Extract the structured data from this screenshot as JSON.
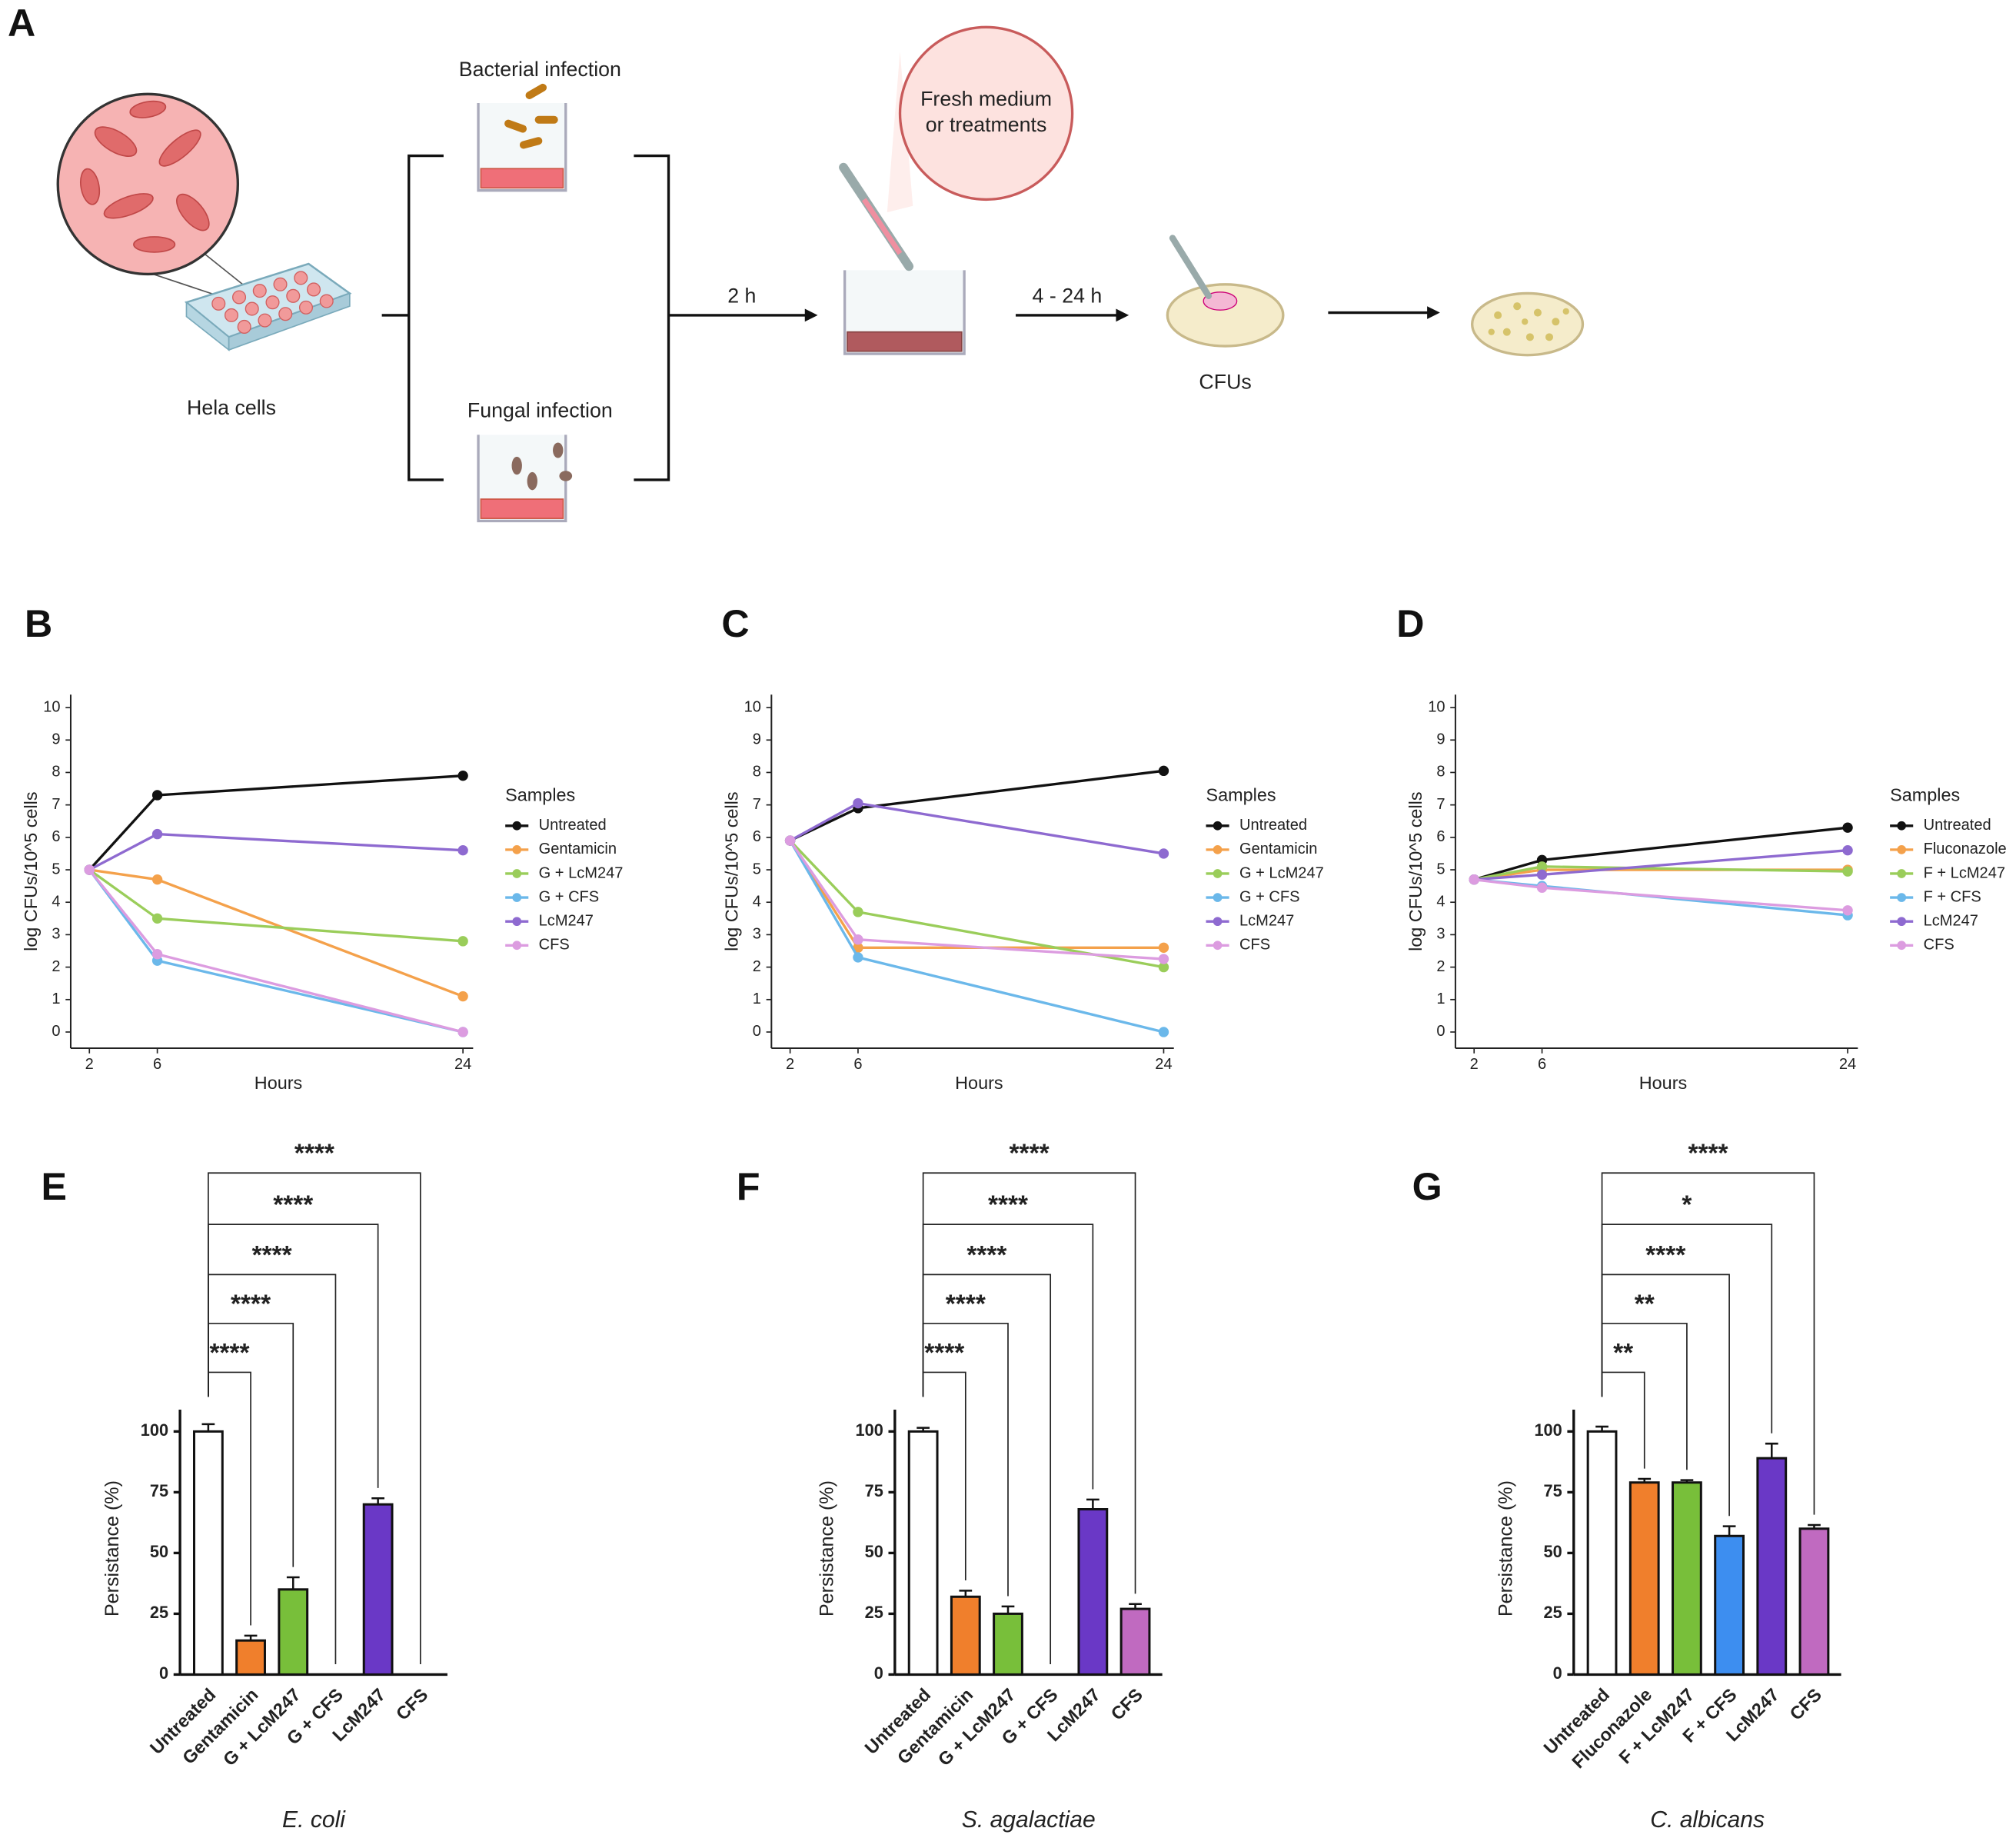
{
  "diagram": {
    "panel": "A",
    "hela": "Hela cells",
    "bacterial": "Bacterial infection",
    "fungal": "Fungal infection",
    "bubble": [
      "Fresh medium",
      "or treatments"
    ],
    "step1": "2 h",
    "step2": "4 - 24 h",
    "cfus": "CFUs"
  },
  "chart_data": [
    {
      "type": "line",
      "panel": "B",
      "xlabel": "Hours",
      "ylabel": "log CFUs/10^5 cells",
      "legend_title": "Samples",
      "x": [
        2,
        6,
        24
      ],
      "xlim": [
        0.9,
        24.6
      ],
      "xticks": [
        2,
        6,
        24
      ],
      "ylim": [
        -0.5,
        10.4
      ],
      "yticks": [
        0,
        1,
        2,
        3,
        4,
        5,
        6,
        7,
        8,
        9,
        10
      ],
      "series": [
        {
          "name": "Untreated",
          "color": "#111111",
          "values": [
            5,
            7.3,
            7.9
          ]
        },
        {
          "name": "Gentamicin",
          "color": "#f4a14b",
          "values": [
            5,
            4.7,
            1.1
          ]
        },
        {
          "name": "G + LcM247",
          "color": "#9acd5a",
          "values": [
            5,
            3.5,
            2.8
          ]
        },
        {
          "name": "G + CFS",
          "color": "#6bb8ea",
          "values": [
            5,
            2.2,
            0
          ]
        },
        {
          "name": "LcM247",
          "color": "#8e6ad0",
          "values": [
            5,
            6.1,
            5.6
          ]
        },
        {
          "name": "CFS",
          "color": "#dc9ce0",
          "values": [
            5,
            2.4,
            0
          ]
        }
      ]
    },
    {
      "type": "line",
      "panel": "C",
      "xlabel": "Hours",
      "ylabel": "log CFUs/10^5 cells",
      "legend_title": "Samples",
      "x": [
        2,
        6,
        24
      ],
      "xlim": [
        0.9,
        24.6
      ],
      "xticks": [
        2,
        6,
        24
      ],
      "ylim": [
        -0.5,
        10.4
      ],
      "yticks": [
        0,
        1,
        2,
        3,
        4,
        5,
        6,
        7,
        8,
        9,
        10
      ],
      "series": [
        {
          "name": "Untreated",
          "color": "#111111",
          "values": [
            5.9,
            6.9,
            8.05
          ]
        },
        {
          "name": "Gentamicin",
          "color": "#f4a14b",
          "values": [
            5.9,
            2.6,
            2.6
          ]
        },
        {
          "name": "G + LcM247",
          "color": "#9acd5a",
          "values": [
            5.9,
            3.7,
            2.0
          ]
        },
        {
          "name": "G + CFS",
          "color": "#6bb8ea",
          "values": [
            5.9,
            2.3,
            0
          ]
        },
        {
          "name": "LcM247",
          "color": "#8e6ad0",
          "values": [
            5.9,
            7.05,
            5.5
          ]
        },
        {
          "name": "CFS",
          "color": "#dc9ce0",
          "values": [
            5.9,
            2.85,
            2.25
          ]
        }
      ]
    },
    {
      "type": "line",
      "panel": "D",
      "xlabel": "Hours",
      "ylabel": "log CFUs/10^5 cells",
      "legend_title": "Samples",
      "x": [
        2,
        6,
        24
      ],
      "xlim": [
        0.9,
        24.6
      ],
      "xticks": [
        2,
        6,
        24
      ],
      "ylim": [
        -0.5,
        10.4
      ],
      "yticks": [
        0,
        1,
        2,
        3,
        4,
        5,
        6,
        7,
        8,
        9,
        10
      ],
      "series": [
        {
          "name": "Untreated",
          "color": "#111111",
          "values": [
            4.7,
            5.3,
            6.3
          ]
        },
        {
          "name": "Fluconazole",
          "color": "#f4a14b",
          "values": [
            4.7,
            5.0,
            5.0
          ]
        },
        {
          "name": "F + LcM247",
          "color": "#9acd5a",
          "values": [
            4.7,
            5.1,
            4.95
          ]
        },
        {
          "name": "F + CFS",
          "color": "#6bb8ea",
          "values": [
            4.7,
            4.5,
            3.6
          ]
        },
        {
          "name": "LcM247",
          "color": "#8e6ad0",
          "values": [
            4.7,
            4.85,
            5.6
          ]
        },
        {
          "name": "CFS",
          "color": "#dc9ce0",
          "values": [
            4.7,
            4.45,
            3.75
          ]
        }
      ]
    },
    {
      "type": "bar",
      "panel": "E",
      "subtitle": "E. coli",
      "ylabel": "Persistance (%)",
      "categories": [
        "Untreated",
        "Gentamicin",
        "G + LcM247",
        "G + CFS",
        "LcM247",
        "CFS"
      ],
      "values": [
        100,
        14,
        35,
        0,
        70,
        0
      ],
      "errors": [
        3,
        2,
        5,
        0,
        2.5,
        0
      ],
      "colors": [
        "#ffffff",
        "#f07f2c",
        "#78bf3a",
        "#3d8ef0",
        "#6a38c6",
        "#c06ac0"
      ],
      "ylim": [
        0,
        109
      ],
      "yticks": [
        0,
        25,
        50,
        75,
        100
      ],
      "significance": [
        "****",
        "****",
        "****",
        "****",
        "****"
      ]
    },
    {
      "type": "bar",
      "panel": "F",
      "subtitle": "S. agalactiae",
      "ylabel": "Persistance (%)",
      "categories": [
        "Untreated",
        "Gentamicin",
        "G + LcM247",
        "G + CFS",
        "LcM247",
        "CFS"
      ],
      "values": [
        100,
        32,
        25,
        0,
        68,
        27
      ],
      "errors": [
        1.5,
        2.5,
        3,
        0,
        4,
        2
      ],
      "colors": [
        "#ffffff",
        "#f07f2c",
        "#78bf3a",
        "#3d8ef0",
        "#6a38c6",
        "#c06ac0"
      ],
      "ylim": [
        0,
        109
      ],
      "yticks": [
        0,
        25,
        50,
        75,
        100
      ],
      "significance": [
        "****",
        "****",
        "****",
        "****",
        "****"
      ]
    },
    {
      "type": "bar",
      "panel": "G",
      "subtitle": "C. albicans",
      "ylabel": "Persistance (%)",
      "categories": [
        "Untreated",
        "Fluconazole",
        "F + LcM247",
        "F + CFS",
        "LcM247",
        "CFS"
      ],
      "values": [
        100,
        79,
        79,
        57,
        89,
        60
      ],
      "errors": [
        2,
        1.5,
        1,
        4,
        6,
        1.5
      ],
      "colors": [
        "#ffffff",
        "#f07f2c",
        "#78bf3a",
        "#3d8ef0",
        "#6a38c6",
        "#c06ac0"
      ],
      "ylim": [
        0,
        109
      ],
      "yticks": [
        0,
        25,
        50,
        75,
        100
      ],
      "significance": [
        "**",
        "**",
        "****",
        "*",
        "****"
      ]
    }
  ]
}
